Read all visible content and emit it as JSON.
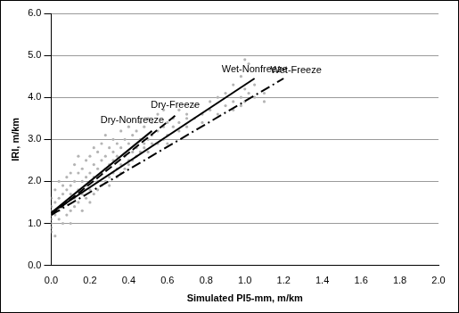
{
  "chart_data": {
    "type": "scatter",
    "x_label": "Simulated PI5-mm, m/km",
    "y_label": "IRI, m/km",
    "xlim": [
      0,
      2.0
    ],
    "ylim": [
      0,
      6.0
    ],
    "xticks": [
      {
        "value": 0,
        "label": "0.0"
      },
      {
        "value": 0.2,
        "label": "0.2"
      },
      {
        "value": 0.4,
        "label": "0.4"
      },
      {
        "value": 0.6,
        "label": "0.6"
      },
      {
        "value": 0.8,
        "label": "0.8"
      },
      {
        "value": 1.0,
        "label": "1.0"
      },
      {
        "value": 1.2,
        "label": "1.2"
      },
      {
        "value": 1.4,
        "label": "1.4"
      },
      {
        "value": 1.6,
        "label": "1.6"
      },
      {
        "value": 1.8,
        "label": "1.8"
      },
      {
        "value": 2.0,
        "label": "2.0"
      }
    ],
    "yticks": [
      {
        "value": 0,
        "label": "0.0"
      },
      {
        "value": 1,
        "label": "1.0"
      },
      {
        "value": 2,
        "label": "2.0"
      },
      {
        "value": 3,
        "label": "3.0"
      },
      {
        "value": 4,
        "label": "4.0"
      },
      {
        "value": 5,
        "label": "5.0"
      },
      {
        "value": 6,
        "label": "6.0"
      }
    ],
    "grid": "y",
    "series": [
      {
        "type": "scatter",
        "color": "#b4b4b4",
        "marker": "circle",
        "x": [
          0,
          0,
          0,
          0,
          0,
          0,
          0,
          0,
          0.02,
          0.02,
          0.02,
          0.02,
          0.04,
          0.04,
          0.04,
          0.04,
          0.06,
          0.06,
          0.06,
          0.06,
          0.08,
          0.08,
          0.08,
          0.08,
          0.1,
          0.1,
          0.1,
          0.1,
          0.1,
          0.12,
          0.12,
          0.12,
          0.12,
          0.14,
          0.14,
          0.14,
          0.14,
          0.16,
          0.16,
          0.16,
          0.16,
          0.18,
          0.18,
          0.18,
          0.18,
          0.2,
          0.2,
          0.2,
          0.2,
          0.2,
          0.22,
          0.22,
          0.22,
          0.22,
          0.24,
          0.24,
          0.24,
          0.24,
          0.26,
          0.26,
          0.26,
          0.26,
          0.28,
          0.28,
          0.28,
          0.28,
          0.3,
          0.3,
          0.3,
          0.3,
          0.32,
          0.32,
          0.32,
          0.32,
          0.34,
          0.34,
          0.34,
          0.34,
          0.36,
          0.36,
          0.36,
          0.36,
          0.38,
          0.38,
          0.38,
          0.4,
          0.4,
          0.4,
          0.4,
          0.42,
          0.42,
          0.42,
          0.44,
          0.44,
          0.44,
          0.46,
          0.46,
          0.46,
          0.48,
          0.48,
          0.48,
          0.5,
          0.5,
          0.5,
          0.52,
          0.52,
          0.52,
          0.55,
          0.55,
          0.55,
          0.58,
          0.58,
          0.58,
          0.6,
          0.6,
          0.6,
          0.63,
          0.63,
          0.66,
          0.66,
          0.66,
          0.7,
          0.7,
          0.7,
          0.74,
          0.74,
          0.78,
          0.78,
          0.82,
          0.82,
          0.86,
          0.86,
          0.9,
          0.9,
          0.94,
          0.94,
          0.94,
          0.98,
          0.98,
          0.98,
          1.0,
          1.0,
          1.0,
          1.02,
          1.02,
          1.05,
          1.05,
          1.1,
          1.1
        ],
        "values": [
          1.0,
          1.2,
          1.4,
          0.8,
          1.6,
          0.9,
          1.1,
          1.3,
          1.5,
          1.2,
          0.7,
          1.8,
          1.1,
          1.6,
          1.3,
          2.0,
          1.4,
          1.9,
          1.0,
          1.7,
          1.2,
          1.5,
          2.1,
          1.8,
          1.3,
          1.7,
          2.2,
          1.0,
          1.9,
          1.6,
          2.0,
          1.4,
          2.4,
          1.8,
          1.5,
          2.2,
          2.6,
          1.7,
          2.0,
          1.3,
          2.3,
          1.9,
          2.5,
          1.6,
          2.1,
          1.8,
          2.2,
          2.6,
          1.5,
          2.0,
          2.1,
          2.4,
          1.7,
          2.8,
          2.0,
          2.3,
          2.7,
          1.8,
          2.2,
          2.5,
          1.9,
          2.9,
          2.3,
          2.0,
          2.6,
          3.1,
          2.1,
          2.4,
          2.8,
          1.9,
          2.5,
          2.2,
          3.0,
          2.7,
          2.3,
          2.6,
          2.9,
          2.1,
          2.4,
          2.8,
          3.2,
          2.2,
          2.6,
          2.3,
          3.0,
          2.5,
          2.9,
          2.4,
          3.3,
          2.7,
          3.1,
          2.5,
          2.8,
          2.6,
          3.2,
          2.7,
          3.0,
          3.4,
          2.9,
          2.8,
          3.3,
          3.0,
          2.7,
          3.5,
          3.1,
          2.9,
          3.4,
          3.2,
          2.9,
          3.6,
          3.0,
          3.3,
          3.7,
          3.1,
          3.4,
          2.9,
          3.3,
          3.5,
          3.4,
          3.2,
          3.7,
          3.3,
          3.6,
          3.5,
          3.5,
          3.8,
          3.6,
          3.4,
          3.7,
          3.9,
          3.6,
          4.0,
          3.8,
          4.1,
          3.9,
          4.3,
          3.7,
          4.0,
          4.5,
          3.8,
          4.9,
          4.2,
          3.9,
          4.8,
          4.1,
          4.0,
          4.3,
          3.9,
          4.1
        ]
      },
      {
        "name": "Dry-Nonfreeze",
        "type": "line",
        "color": "#000000",
        "line_style": "solid",
        "x": [
          0,
          0.52
        ],
        "values": [
          1.25,
          3.2
        ]
      },
      {
        "name": "Dry-Freeze",
        "type": "line",
        "color": "#000000",
        "line_style": "dashed",
        "x": [
          0,
          0.65
        ],
        "values": [
          1.2,
          3.6
        ]
      },
      {
        "name": "Wet-Nonfreeze",
        "type": "line",
        "color": "#000000",
        "line_style": "solid",
        "x": [
          0,
          1.05
        ],
        "values": [
          1.25,
          4.45
        ]
      },
      {
        "name": "Wet-Freeze",
        "type": "line",
        "color": "#000000",
        "line_style": "dashdot",
        "x": [
          0,
          1.2
        ],
        "values": [
          1.2,
          4.45
        ]
      }
    ]
  }
}
